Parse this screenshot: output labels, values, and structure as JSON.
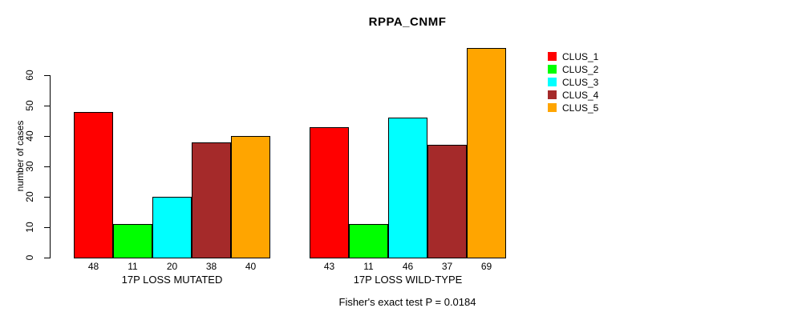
{
  "title": "RPPA_CNMF",
  "chart_data": {
    "type": "bar",
    "title": "RPPA_CNMF",
    "xlabel": "",
    "ylabel": "number of cases",
    "yticks": [
      0,
      10,
      20,
      30,
      40,
      50,
      60
    ],
    "ylim": [
      0,
      69
    ],
    "grid": false,
    "legend_position": "right",
    "bar_value_labels": true,
    "groups": [
      "17P LOSS MUTATED",
      "17P LOSS WILD-TYPE"
    ],
    "series": [
      {
        "name": "CLUS_1",
        "color": "#FF0000",
        "values": [
          48,
          43
        ]
      },
      {
        "name": "CLUS_2",
        "color": "#00FF00",
        "values": [
          11,
          11
        ]
      },
      {
        "name": "CLUS_3",
        "color": "#00FFFF",
        "values": [
          20,
          46
        ]
      },
      {
        "name": "CLUS_4",
        "color": "#A52A2A",
        "values": [
          38,
          37
        ]
      },
      {
        "name": "CLUS_5",
        "color": "#FFA500",
        "values": [
          40,
          69
        ]
      }
    ],
    "annotation": "Fisher's exact test P = 0.0184"
  }
}
